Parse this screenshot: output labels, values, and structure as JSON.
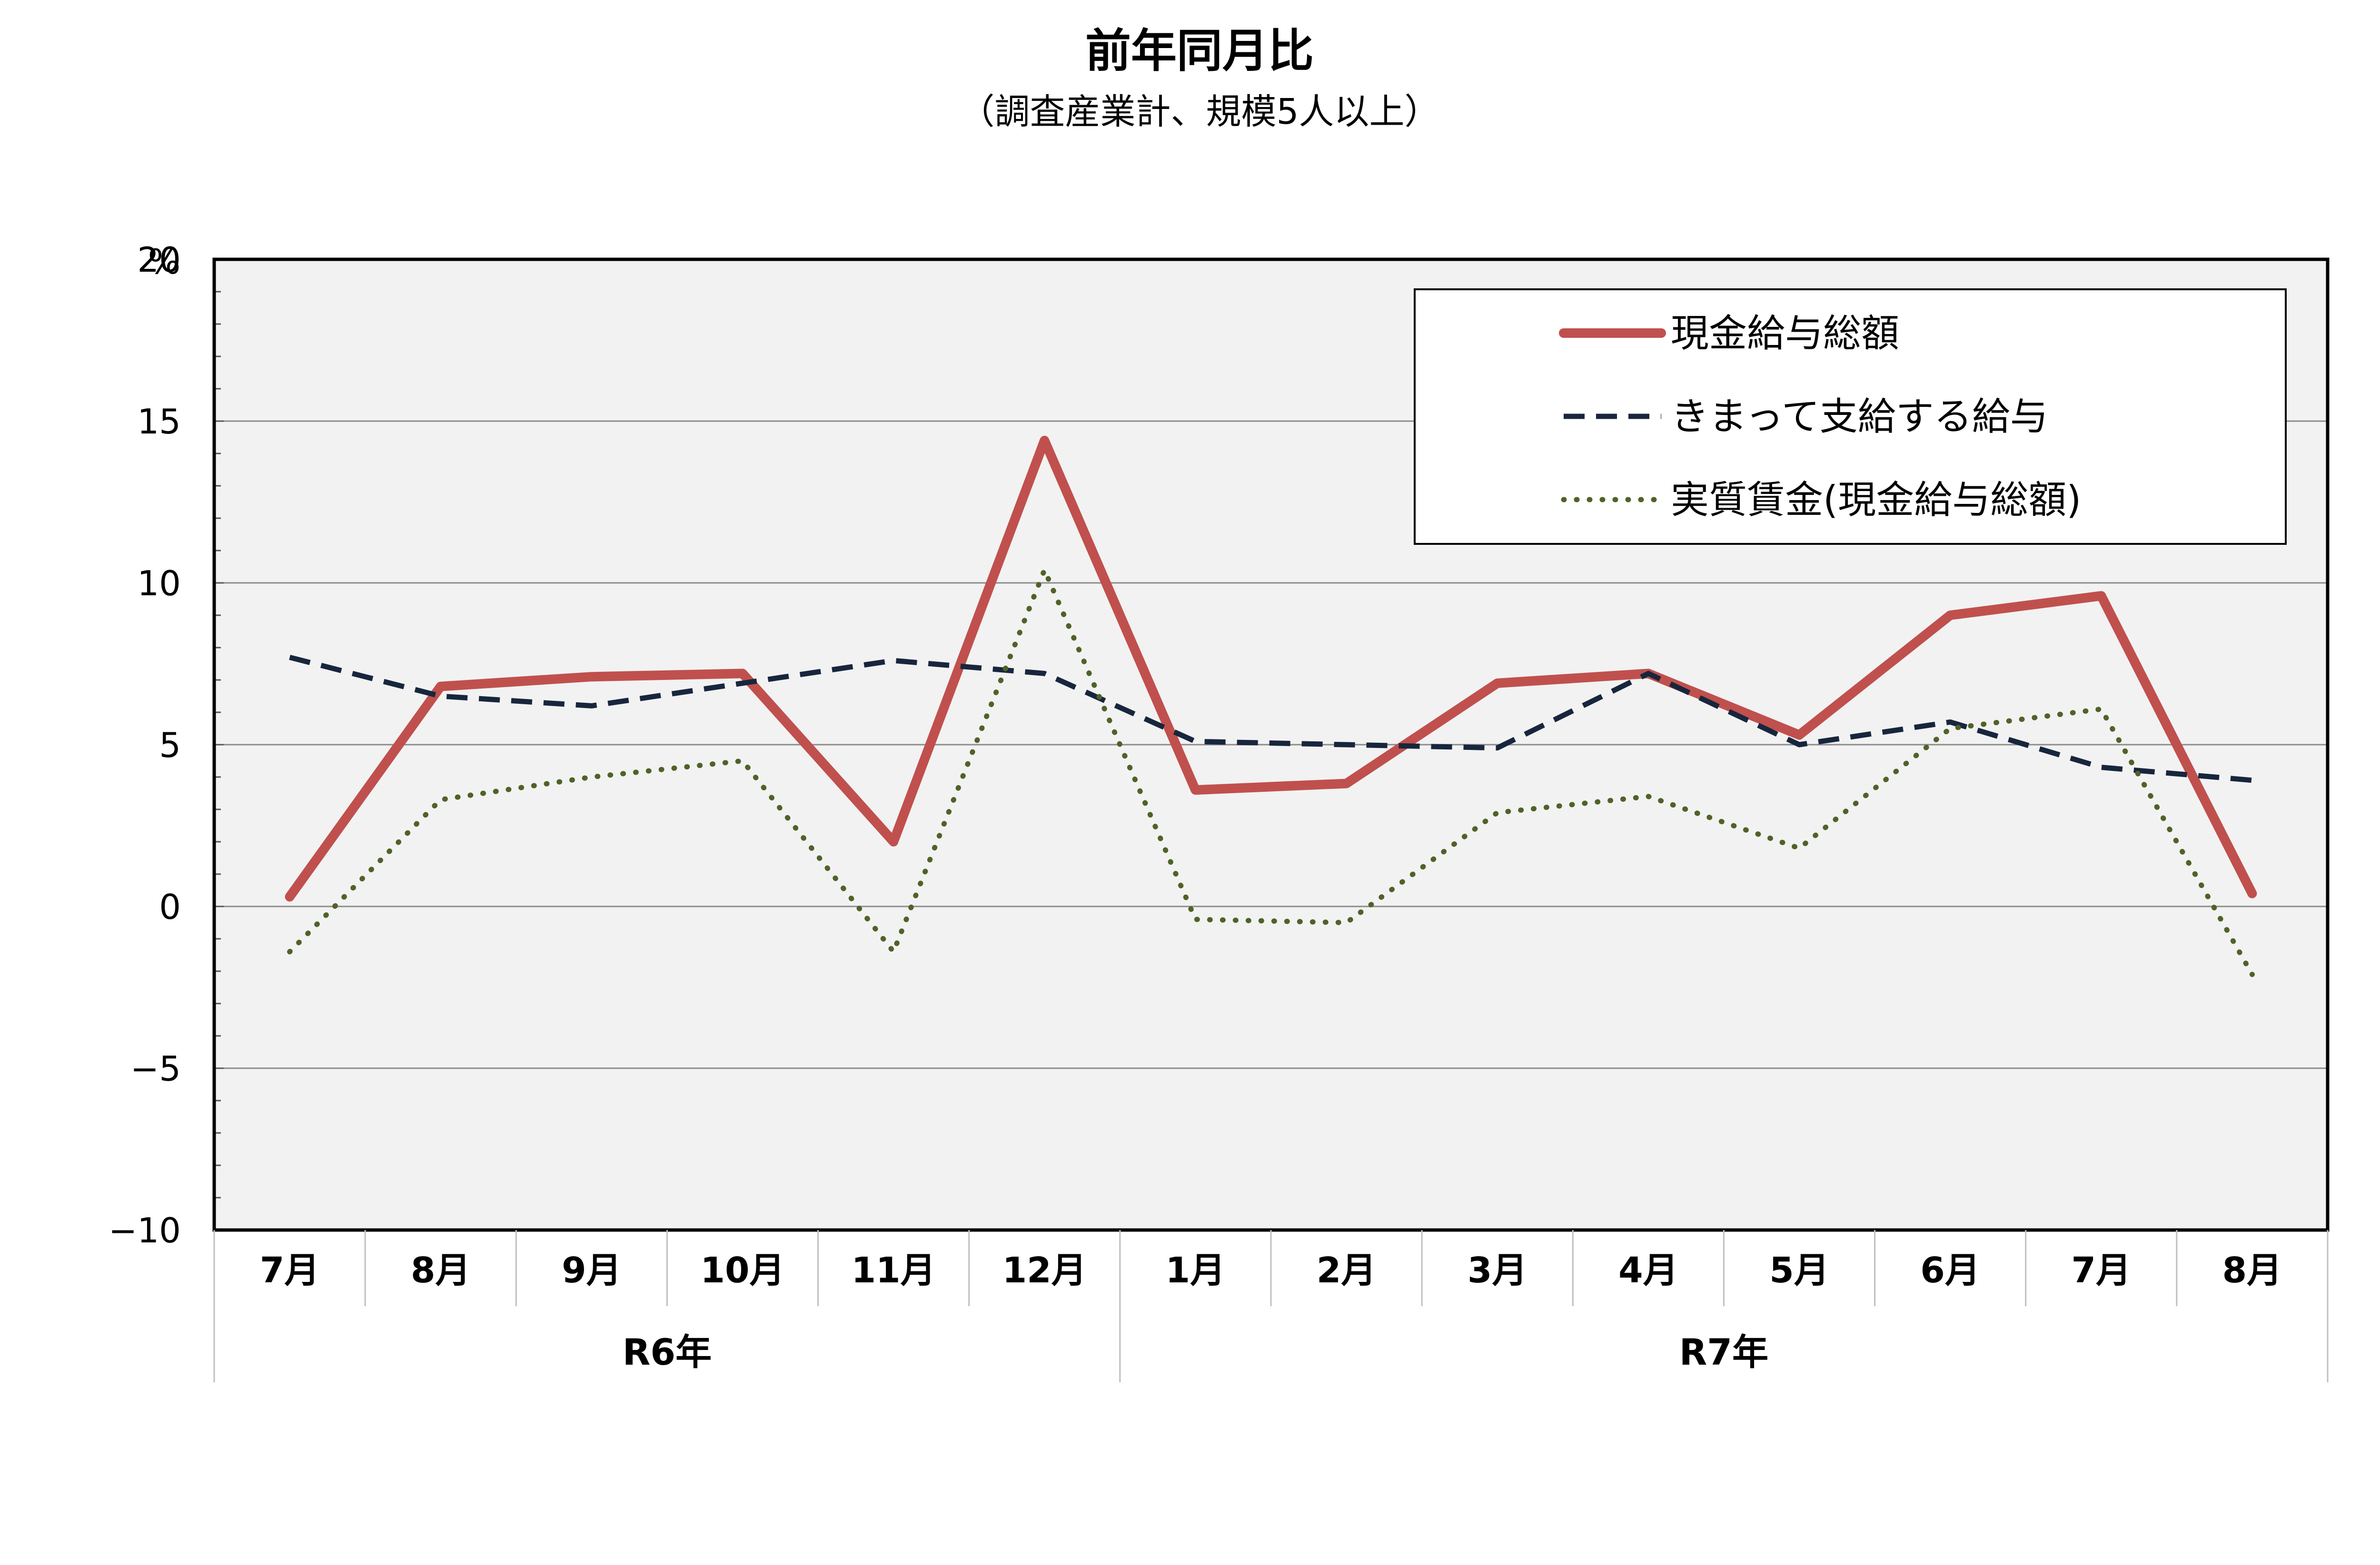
{
  "chart_data": {
    "type": "line",
    "title": "前年同月比",
    "subtitle": "（調査産業計、規模5人以上）",
    "ylabel": "%",
    "ylim": [
      -10,
      20
    ],
    "yticks": [
      20,
      15,
      10,
      5,
      0,
      -5,
      -10
    ],
    "ytick_labels": [
      "20",
      "15",
      "10",
      "5",
      "0",
      "−5",
      "−10"
    ],
    "categories": [
      "7月",
      "8月",
      "9月",
      "10月",
      "11月",
      "12月",
      "1月",
      "2月",
      "3月",
      "4月",
      "5月",
      "6月",
      "7月",
      "8月"
    ],
    "groups": [
      {
        "label": "R6年",
        "span": 6
      },
      {
        "label": "R7年",
        "span": 8
      }
    ],
    "grid": true,
    "legend_position": "top-right",
    "series": [
      {
        "name": "現金給与総額",
        "color": "#c0504d",
        "style": "solid",
        "values": [
          0.3,
          6.8,
          7.1,
          7.2,
          2.0,
          14.4,
          3.6,
          3.8,
          6.9,
          7.2,
          5.3,
          9.0,
          9.6,
          0.4
        ]
      },
      {
        "name": "きまって支給する給与",
        "color": "#17263d",
        "style": "dashed",
        "values": [
          7.7,
          6.5,
          6.2,
          6.9,
          7.6,
          7.2,
          5.1,
          5.0,
          4.9,
          7.2,
          5.0,
          5.7,
          4.3,
          3.9
        ]
      },
      {
        "name": "実質賃金(現金給与総額)",
        "color": "#4f6228",
        "style": "dotted",
        "values": [
          -1.4,
          3.3,
          4.0,
          4.5,
          -1.4,
          10.4,
          -0.4,
          -0.5,
          2.9,
          3.4,
          1.8,
          5.5,
          6.1,
          -2.1
        ]
      }
    ]
  }
}
